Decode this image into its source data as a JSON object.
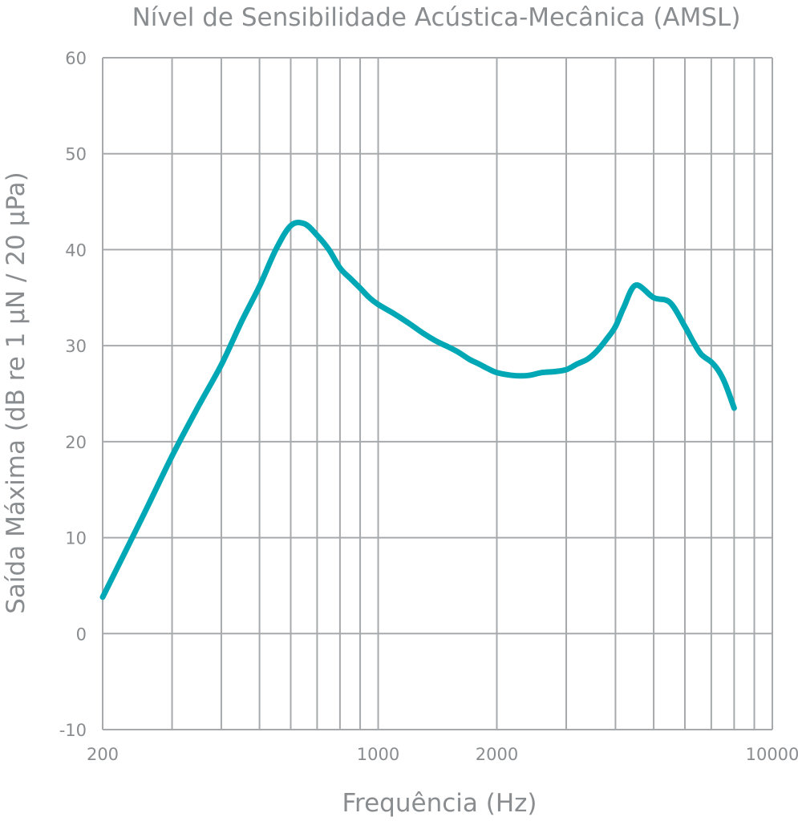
{
  "chart_data": {
    "type": "line",
    "title": "Nível de Sensibilidade Acústica-Mecânica (AMSL)",
    "xlabel": "Frequência (Hz)",
    "ylabel": "Saída Máxima (dB re 1 μN / 20 μPa)",
    "x_scale": "log",
    "xlim": [
      200,
      10000
    ],
    "ylim": [
      -10,
      60
    ],
    "x_ticks": [
      200,
      1000,
      2000,
      10000
    ],
    "x_tick_labels": [
      "200",
      "1000",
      "2000",
      "10000"
    ],
    "y_ticks": [
      -10,
      0,
      10,
      20,
      30,
      40,
      50,
      60
    ],
    "y_tick_labels": [
      "-10",
      "0",
      "10",
      "20",
      "30",
      "40",
      "50",
      "60"
    ],
    "grid": true,
    "line_color": "#00a8b5",
    "series": [
      {
        "x": [
          200,
          250,
          300,
          350,
          400,
          450,
          500,
          550,
          600,
          650,
          700,
          750,
          800,
          850,
          900,
          950,
          1000,
          1100,
          1200,
          1300,
          1400,
          1500,
          1600,
          1700,
          1800,
          1900,
          2000,
          2200,
          2400,
          2600,
          2800,
          3000,
          3200,
          3400,
          3600,
          3800,
          4000,
          4200,
          4500,
          5000,
          5500,
          6000,
          6300,
          6600,
          7000,
          7300,
          7600,
          8000
        ],
        "y": [
          3.8,
          11.8,
          18.5,
          23.7,
          28.0,
          32.5,
          36.2,
          40.0,
          42.5,
          42.7,
          41.5,
          40.0,
          38.1,
          37.0,
          36.0,
          35.0,
          34.3,
          33.3,
          32.3,
          31.3,
          30.5,
          29.9,
          29.3,
          28.6,
          28.1,
          27.6,
          27.2,
          26.9,
          26.9,
          27.2,
          27.3,
          27.5,
          28.1,
          28.6,
          29.5,
          30.7,
          32.0,
          34.0,
          36.3,
          35.0,
          34.5,
          32.0,
          30.4,
          29.1,
          28.3,
          27.4,
          26.0,
          23.5
        ]
      }
    ]
  }
}
